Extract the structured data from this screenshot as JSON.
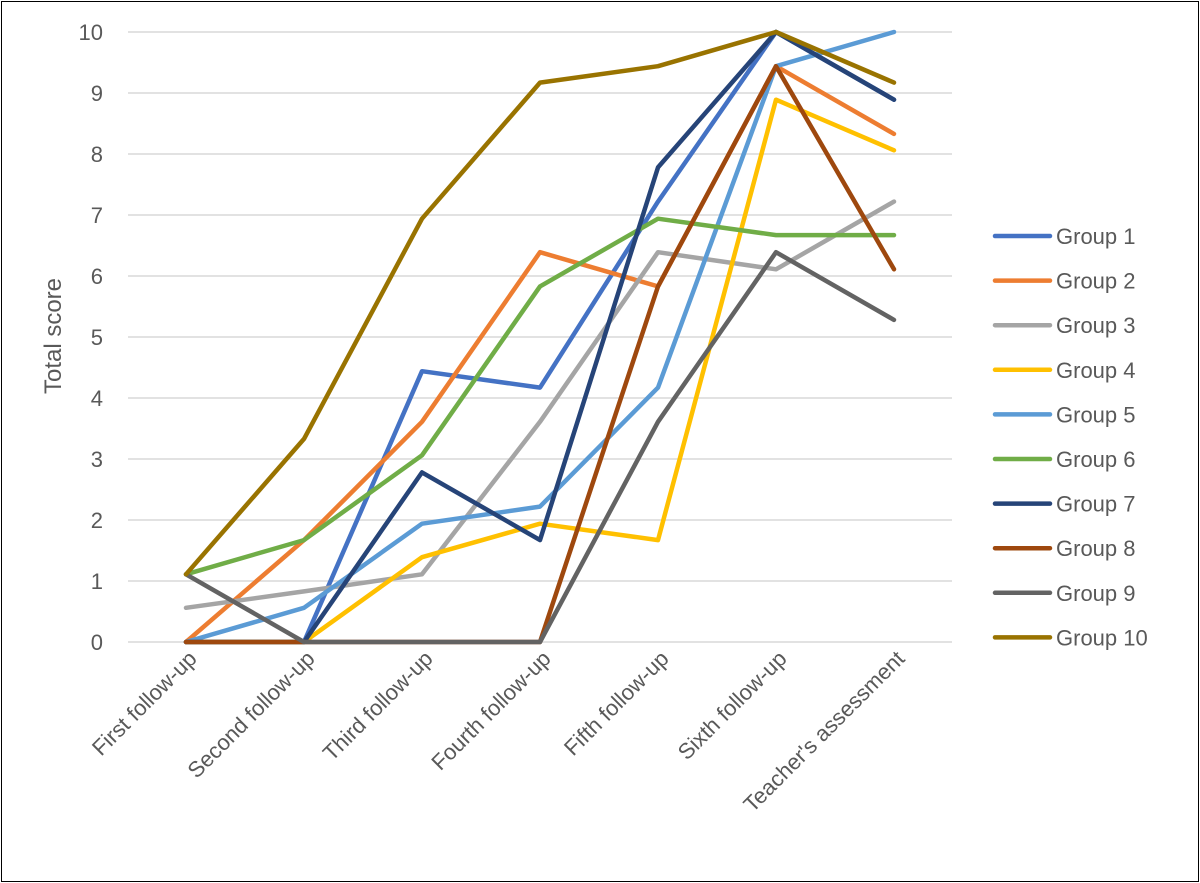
{
  "chart_data": {
    "type": "line",
    "title": "",
    "xlabel": "",
    "ylabel": "Total score",
    "ylim": [
      0,
      10
    ],
    "yticks": [
      "0",
      "1",
      "2",
      "3",
      "4",
      "5",
      "6",
      "7",
      "8",
      "9",
      "10"
    ],
    "grid": true,
    "legend_position": "right",
    "categories": [
      "First follow-up",
      "Second follow-up",
      "Third follow-up",
      "Fourth follow-up",
      "Fifth follow-up",
      "Sixth follow-up",
      "Teacher's assessment"
    ],
    "series": [
      {
        "name": "Group 1",
        "color": "#4472C4",
        "values": [
          0,
          0,
          4.44,
          4.17,
          7.22,
          10,
          8.89
        ]
      },
      {
        "name": "Group 2",
        "color": "#ED7D31",
        "values": [
          0,
          1.67,
          3.61,
          6.39,
          5.83,
          9.44,
          8.33
        ]
      },
      {
        "name": "Group 3",
        "color": "#A5A5A5",
        "values": [
          0.56,
          0.83,
          1.11,
          3.61,
          6.39,
          6.11,
          7.22
        ]
      },
      {
        "name": "Group 4",
        "color": "#FFC000",
        "values": [
          0,
          0,
          1.39,
          1.94,
          1.67,
          8.89,
          8.06
        ]
      },
      {
        "name": "Group 5",
        "color": "#5B9BD5",
        "values": [
          0,
          0.56,
          1.94,
          2.22,
          4.17,
          9.44,
          10
        ]
      },
      {
        "name": "Group 6",
        "color": "#70AD47",
        "values": [
          1.11,
          1.67,
          3.06,
          5.83,
          6.94,
          6.67,
          6.67
        ]
      },
      {
        "name": "Group 7",
        "color": "#264478",
        "values": [
          0,
          0,
          2.78,
          1.67,
          7.78,
          10,
          8.89
        ]
      },
      {
        "name": "Group 8",
        "color": "#9E480E",
        "values": [
          0,
          0,
          0,
          0,
          5.83,
          9.44,
          6.11
        ]
      },
      {
        "name": "Group 9",
        "color": "#636363",
        "values": [
          1.11,
          0,
          0,
          0,
          3.61,
          6.39,
          5.28
        ]
      },
      {
        "name": "Group 10",
        "color": "#997300",
        "values": [
          1.11,
          3.33,
          6.94,
          9.17,
          9.44,
          10,
          9.17
        ]
      }
    ]
  }
}
